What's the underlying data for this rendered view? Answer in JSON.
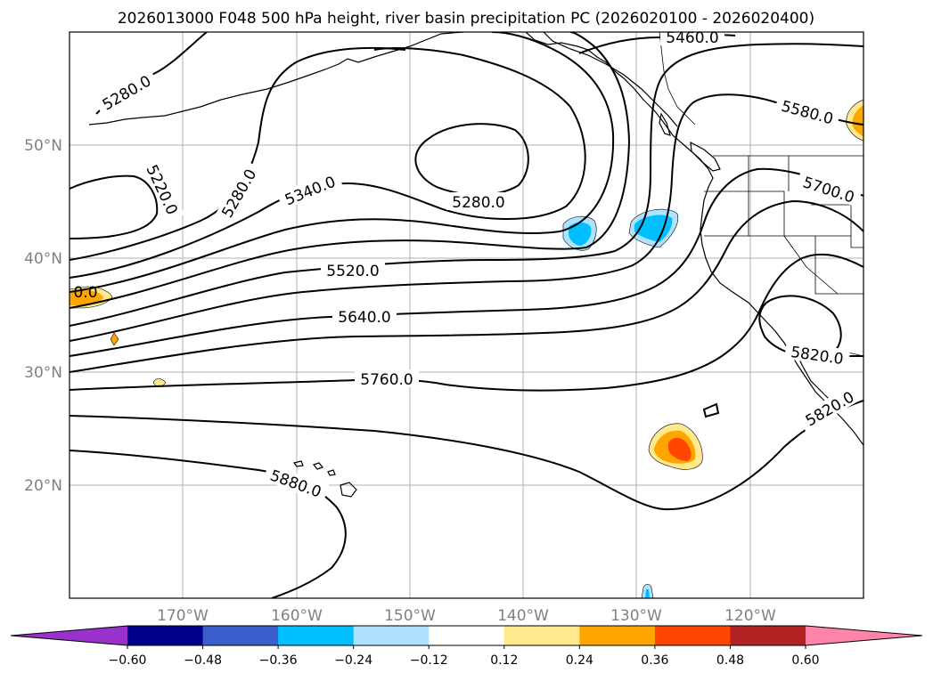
{
  "title": "2026013000 F048 500 hPa height, river basin precipitation PC (2026020100 - 2026020400)",
  "map": {
    "lon_range": [
      180,
      110
    ],
    "lat_range": [
      10,
      60
    ],
    "gridline_color": "#b0b0b0",
    "lon_ticks": [
      "170°W",
      "160°W",
      "150°W",
      "140°W",
      "130°W",
      "120°W"
    ],
    "lat_ticks": [
      "20°N",
      "30°N",
      "40°N",
      "50°N"
    ]
  },
  "contour_labels": [
    "5280.0",
    "5220.0",
    "5280.0",
    "5340.0",
    "5280.0",
    "5460.0",
    "5580.0",
    "5700.0",
    "5520.0",
    "5640.0",
    "5760.0",
    "5820.0",
    "5820.0",
    "5880.0",
    "0.0"
  ],
  "colorbar": {
    "ticks": [
      "−0.60",
      "−0.48",
      "−0.36",
      "−0.24",
      "−0.12",
      "0.12",
      "0.24",
      "0.36",
      "0.48",
      "0.60"
    ],
    "colors": [
      "#9932cc",
      "#00008b",
      "#3a5fcd",
      "#00bfff",
      "#b0e2ff",
      "#ffffff",
      "#ffe98c",
      "#ffa500",
      "#ff4500",
      "#b22222",
      "#ff85a8"
    ]
  },
  "anomaly_patches": [
    {
      "name": "blue-patch-135w",
      "color": "#00bfff"
    },
    {
      "name": "blue-patch-129w",
      "color": "#00bfff"
    },
    {
      "name": "orange-patch-126w",
      "color": "#ffa500"
    },
    {
      "name": "orange-patch-west-edge",
      "color": "#ffa500"
    },
    {
      "name": "orange-patch-northeast",
      "color": "#ffa500"
    }
  ]
}
